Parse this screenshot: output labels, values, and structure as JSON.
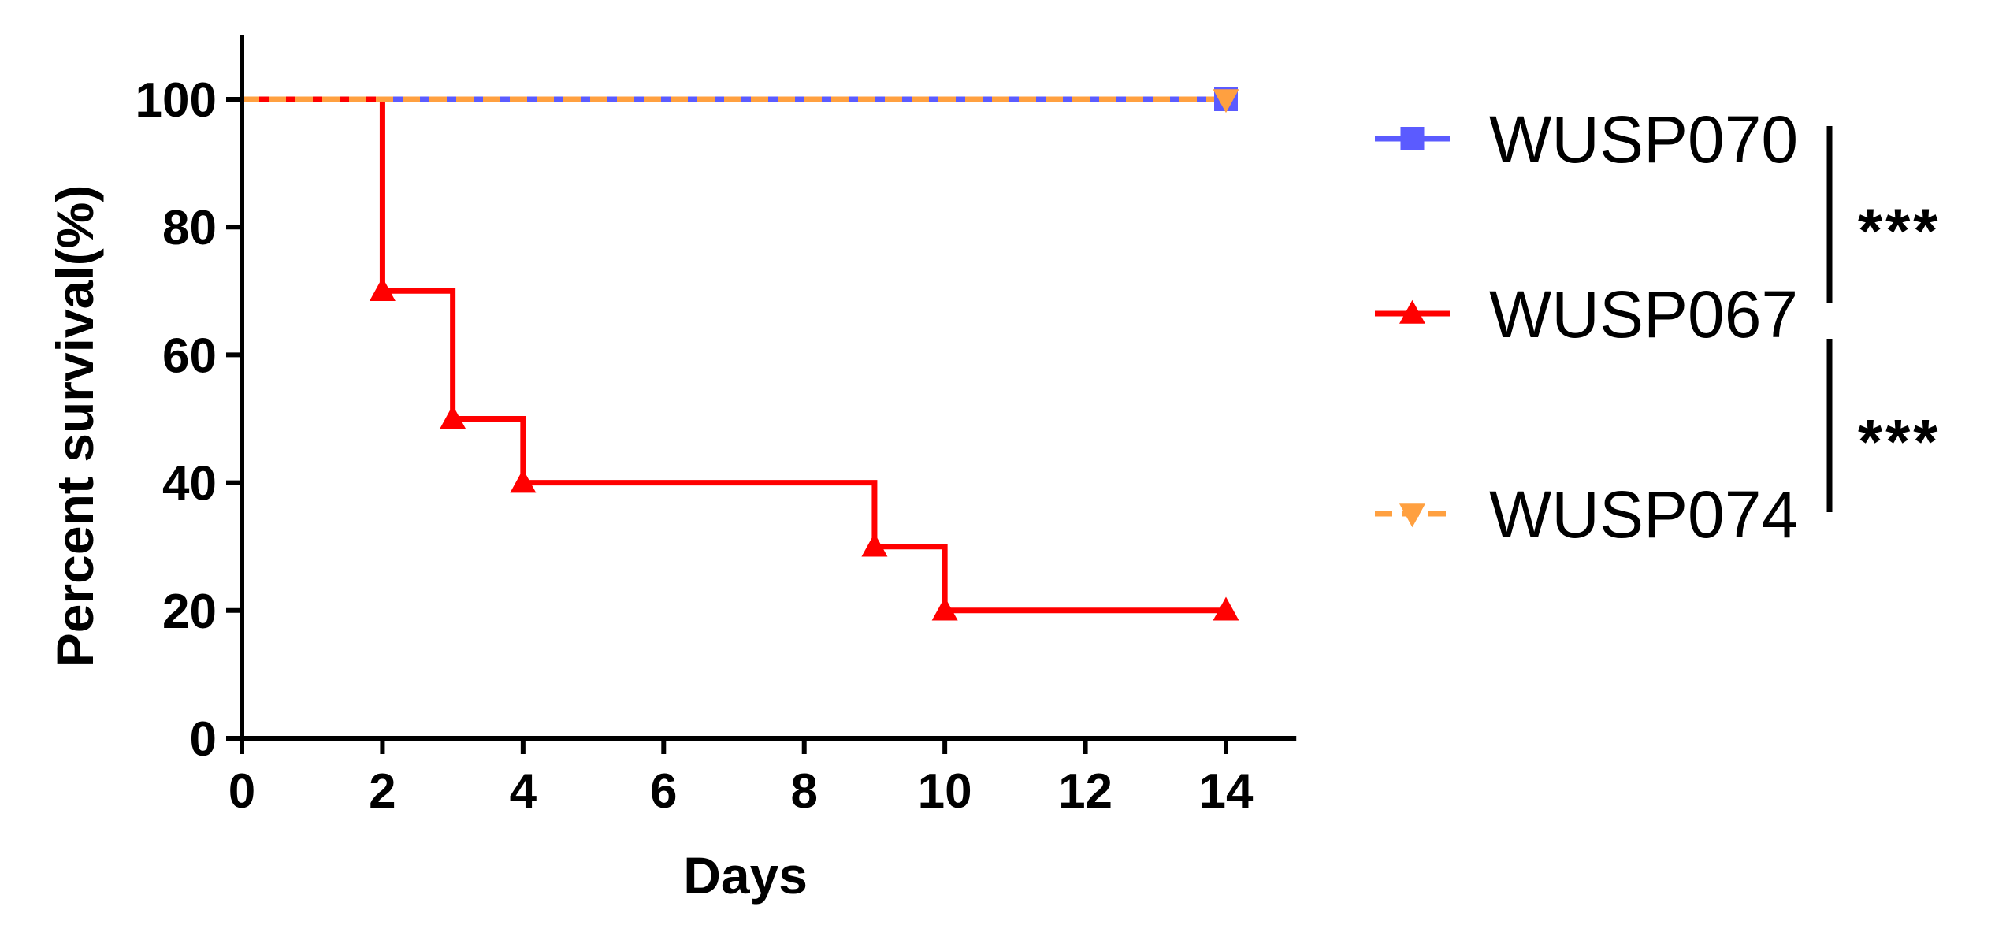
{
  "chart_data": {
    "type": "line",
    "subtype": "kaplan-meier survival",
    "title": "",
    "xlabel": "Days",
    "ylabel": "Percent survival(%)",
    "xlim": [
      0,
      15
    ],
    "ylim": [
      0,
      110
    ],
    "xticks": [
      0,
      2,
      4,
      6,
      8,
      10,
      12,
      14
    ],
    "yticks": [
      0,
      20,
      40,
      60,
      80,
      100
    ],
    "grid": false,
    "legend_position": "right",
    "series": [
      {
        "name": "WUSP070",
        "color": "#5b5bff",
        "line_style": "solid",
        "marker": "square",
        "x": [
          0,
          14
        ],
        "y": [
          100,
          100
        ],
        "markers": [
          {
            "x": 14,
            "y": 100
          }
        ]
      },
      {
        "name": "WUSP067",
        "color": "#ff0000",
        "line_style": "solid",
        "marker": "triangle-up",
        "x": [
          0,
          2,
          3,
          4,
          9,
          10,
          14
        ],
        "y": [
          100,
          70,
          50,
          40,
          30,
          20,
          20
        ],
        "markers": [
          {
            "x": 2,
            "y": 70
          },
          {
            "x": 3,
            "y": 50
          },
          {
            "x": 4,
            "y": 40
          },
          {
            "x": 9,
            "y": 30
          },
          {
            "x": 10,
            "y": 20
          },
          {
            "x": 14,
            "y": 20
          }
        ]
      },
      {
        "name": "WUSP074",
        "color": "#ffa040",
        "line_style": "dashed",
        "marker": "triangle-down",
        "x": [
          0,
          14
        ],
        "y": [
          100,
          100
        ],
        "markers": [
          {
            "x": 14,
            "y": 100
          }
        ]
      }
    ],
    "annotations": [
      {
        "text": "***",
        "between": [
          "WUSP070",
          "WUSP067"
        ]
      },
      {
        "text": "***",
        "between": [
          "WUSP067",
          "WUSP074"
        ]
      }
    ]
  }
}
